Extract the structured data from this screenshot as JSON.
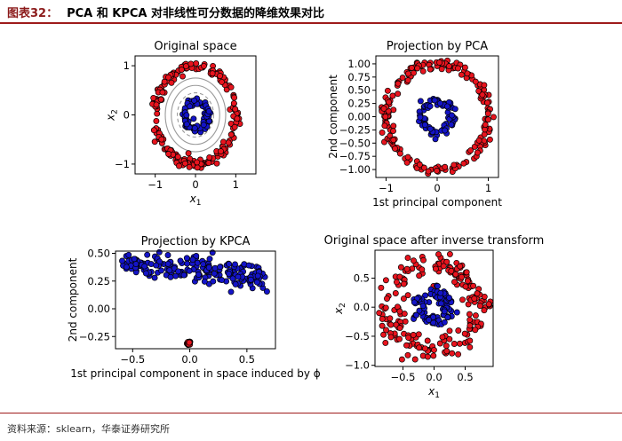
{
  "header": {
    "figure_label": "图表32：",
    "title": "PCA 和 KPCA 对非线性可分数据的降维效果对比"
  },
  "source": "资料来源：sklearn，华泰证券研究所",
  "colors": {
    "brand": "#9e1b1b",
    "red": "#e8141e",
    "blue": "#1414c8",
    "contour": "#9a9a9a"
  },
  "chart_data": [
    {
      "type": "scatter",
      "title": "Original space",
      "xlabel": "x1",
      "ylabel": "x2",
      "xlim": [
        -1.5,
        1.5
      ],
      "ylim": [
        -1.2,
        1.2
      ],
      "xticks": [
        -1,
        0,
        1
      ],
      "yticks": [
        -1,
        0,
        1
      ],
      "xtick_labels": [
        "−1",
        "0",
        "1"
      ],
      "ytick_labels": [
        "−1",
        "0",
        "1"
      ],
      "series": [
        {
          "name": "outer circle",
          "color": "red",
          "shape": "ring",
          "radius": 1.0,
          "noise": 0.05,
          "count": 200
        },
        {
          "name": "inner circle",
          "color": "blue",
          "shape": "ring",
          "radius": 0.3,
          "noise": 0.05,
          "count": 80
        }
      ],
      "contour_radii": [
        0.45,
        0.6,
        0.75
      ]
    },
    {
      "type": "scatter",
      "title": "Projection by PCA",
      "xlabel": "1st principal component",
      "ylabel": "2nd component",
      "xlim": [
        -1.2,
        1.2
      ],
      "ylim": [
        -1.15,
        1.15
      ],
      "xticks": [
        -1,
        0,
        1
      ],
      "yticks": [
        -1.0,
        -0.75,
        -0.5,
        -0.25,
        0.0,
        0.25,
        0.5,
        0.75,
        1.0
      ],
      "xtick_labels": [
        "−1",
        "0",
        "1"
      ],
      "ytick_labels": [
        "−1.00",
        "−0.75",
        "−0.50",
        "−0.25",
        "0.00",
        "0.25",
        "0.50",
        "0.75",
        "1.00"
      ],
      "series": [
        {
          "name": "outer circle",
          "color": "red",
          "shape": "ring",
          "radius": 1.0,
          "noise": 0.05,
          "count": 200
        },
        {
          "name": "inner circle",
          "color": "blue",
          "shape": "ring",
          "radius": 0.3,
          "noise": 0.05,
          "count": 80
        }
      ]
    },
    {
      "type": "scatter",
      "title": "Projection by KPCA",
      "xlabel": "1st principal component in space induced by ϕ",
      "ylabel": "2nd component",
      "xlim": [
        -0.65,
        0.75
      ],
      "ylim": [
        -0.36,
        0.52
      ],
      "xticks": [
        -0.5,
        0.0,
        0.5
      ],
      "yticks": [
        -0.25,
        0.0,
        0.25,
        0.5
      ],
      "xtick_labels": [
        "−0.5",
        "0.0",
        "0.5"
      ],
      "ytick_labels": [
        "−0.25",
        "0.00",
        "0.25",
        "0.50"
      ],
      "series": [
        {
          "name": "outer circle",
          "color": "red",
          "shape": "cluster",
          "center": [
            -0.01,
            -0.31
          ],
          "spread": 0.006,
          "count": 40
        },
        {
          "name": "inner circle",
          "color": "blue",
          "shape": "band",
          "x_range": [
            -0.6,
            0.68
          ],
          "y_start": 0.43,
          "y_end": 0.28,
          "spread": 0.06,
          "count": 200
        }
      ]
    },
    {
      "type": "scatter",
      "title": "Original space after inverse transform",
      "xlabel": "x1",
      "ylabel": "x2",
      "xlim": [
        -0.95,
        0.95
      ],
      "ylim": [
        -1.02,
        0.98
      ],
      "xticks": [
        -0.5,
        0.0,
        0.5
      ],
      "yticks": [
        -1.0,
        -0.5,
        0.0,
        0.5
      ],
      "xtick_labels": [
        "−0.5",
        "0.0",
        "0.5"
      ],
      "ytick_labels": [
        "−1.0",
        "−0.5",
        "0.0",
        "0.5"
      ],
      "series": [
        {
          "name": "outer circle",
          "color": "red",
          "shape": "ring",
          "radius": 0.72,
          "noise": 0.12,
          "count": 200
        },
        {
          "name": "inner circle",
          "color": "blue",
          "shape": "ring",
          "radius": 0.24,
          "noise": 0.06,
          "count": 90
        }
      ]
    }
  ]
}
